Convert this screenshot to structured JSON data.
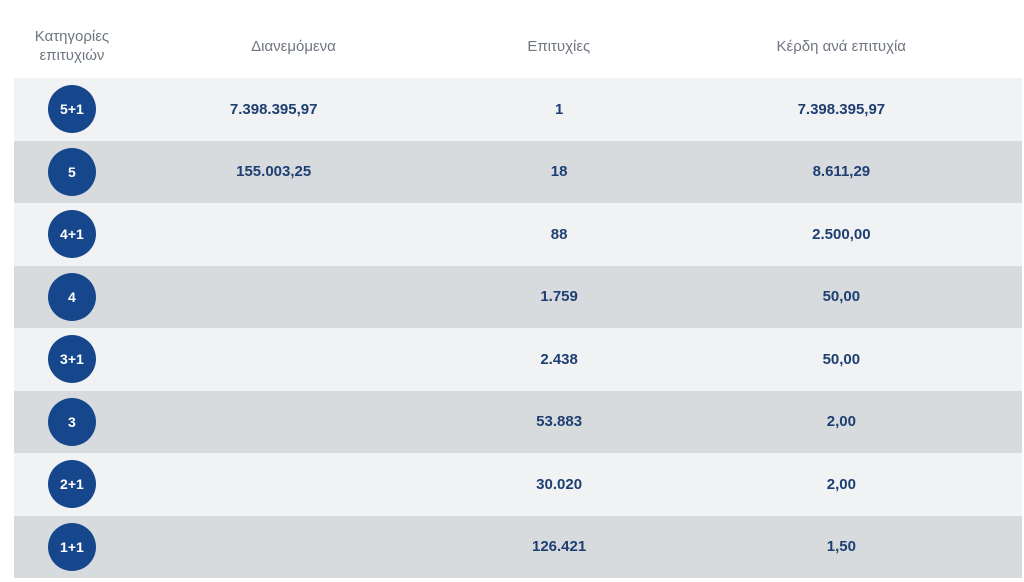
{
  "headers": {
    "category": "Κατηγορίες επιτυχιών",
    "distributed": "Διανεμόμενα",
    "winners": "Επιτυχίες",
    "prize_per_winner": "Κέρδη ανά επιτυχία"
  },
  "rows": [
    {
      "category": "5+1",
      "distributed": "7.398.395,97",
      "winners": "1",
      "prize": "7.398.395,97"
    },
    {
      "category": "5",
      "distributed": "155.003,25",
      "winners": "18",
      "prize": "8.611,29"
    },
    {
      "category": "4+1",
      "distributed": "",
      "winners": "88",
      "prize": "2.500,00"
    },
    {
      "category": "4",
      "distributed": "",
      "winners": "1.759",
      "prize": "50,00"
    },
    {
      "category": "3+1",
      "distributed": "",
      "winners": "2.438",
      "prize": "50,00"
    },
    {
      "category": "3",
      "distributed": "",
      "winners": "53.883",
      "prize": "2,00"
    },
    {
      "category": "2+1",
      "distributed": "",
      "winners": "30.020",
      "prize": "2,00"
    },
    {
      "category": "1+1",
      "distributed": "",
      "winners": "126.421",
      "prize": "1,50"
    }
  ],
  "colors": {
    "badge": "#16478c",
    "value_text": "#1e3f72",
    "row_light": "#f1f2f3",
    "row_dark": "#d8dbde"
  }
}
